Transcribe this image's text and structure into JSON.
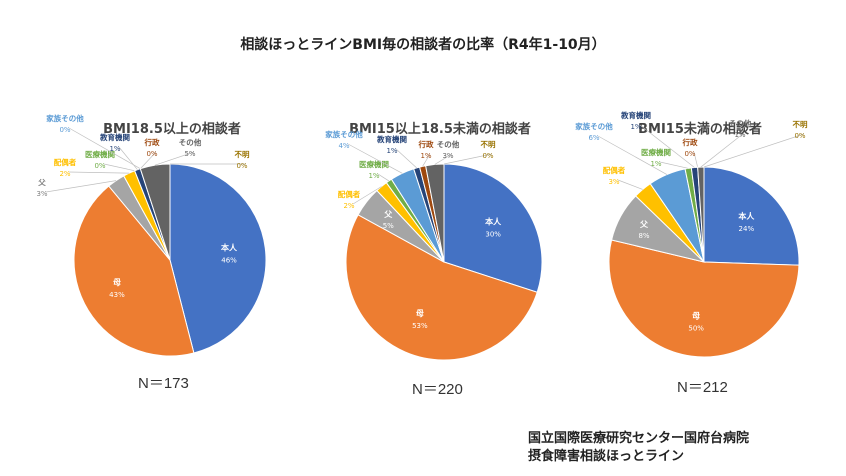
{
  "header": {
    "title": "相談ほっとラインBMI毎の相談者の比率（R4年1-10月）"
  },
  "chart_data": [
    {
      "type": "pie",
      "title": "BMI18.5以上の相談者",
      "n_label": "N＝173",
      "slices": [
        {
          "label": "本人",
          "value": 46,
          "value_label": "46%",
          "color": "#4472C4"
        },
        {
          "label": "母",
          "value": 43,
          "value_label": "43%",
          "color": "#ED7D31"
        },
        {
          "label": "父",
          "value": 3,
          "value_label": "3%",
          "color": "#A5A5A5"
        },
        {
          "label": "配偶者",
          "value": 2,
          "value_label": "2%",
          "color": "#FFC000"
        },
        {
          "label": "医療機関",
          "value": 0,
          "value_label": "0%",
          "color": "#70AD47"
        },
        {
          "label": "教育機関",
          "value": 1,
          "value_label": "1%",
          "color": "#264478"
        },
        {
          "label": "行政",
          "value": 0,
          "value_label": "0%",
          "color": "#9E480E"
        },
        {
          "label": "家族その他",
          "value": 0,
          "value_label": "0%",
          "color": "#5B9BD5"
        },
        {
          "label": "その他",
          "value": 5,
          "value_label": "5%",
          "color": "#636363"
        },
        {
          "label": "不明",
          "value": 0,
          "value_label": "0%",
          "color": "#997300"
        }
      ]
    },
    {
      "type": "pie",
      "title": "BMI15以上18.5未満の相談者",
      "n_label": "N＝220",
      "slices": [
        {
          "label": "本人",
          "value": 30,
          "value_label": "30%",
          "color": "#4472C4"
        },
        {
          "label": "母",
          "value": 53,
          "value_label": "53%",
          "color": "#ED7D31"
        },
        {
          "label": "父",
          "value": 5,
          "value_label": "5%",
          "color": "#A5A5A5"
        },
        {
          "label": "配偶者",
          "value": 2,
          "value_label": "2%",
          "color": "#FFC000"
        },
        {
          "label": "医療機関",
          "value": 1,
          "value_label": "1%",
          "color": "#70AD47"
        },
        {
          "label": "家族その他",
          "value": 4,
          "value_label": "4%",
          "color": "#5B9BD5"
        },
        {
          "label": "教育機関",
          "value": 1,
          "value_label": "1%",
          "color": "#264478"
        },
        {
          "label": "行政",
          "value": 1,
          "value_label": "1%",
          "color": "#9E480E"
        },
        {
          "label": "その他",
          "value": 3,
          "value_label": "3%",
          "color": "#636363"
        },
        {
          "label": "不明",
          "value": 0,
          "value_label": "0%",
          "color": "#997300"
        }
      ]
    },
    {
      "type": "pie",
      "title": "BMI15未満の相談者",
      "n_label": "N＝212",
      "slices": [
        {
          "label": "本人",
          "value": 24,
          "value_label": "24%",
          "color": "#4472C4"
        },
        {
          "label": "母",
          "value": 50,
          "value_label": "50%",
          "color": "#ED7D31"
        },
        {
          "label": "父",
          "value": 8,
          "value_label": "8%",
          "color": "#A5A5A5"
        },
        {
          "label": "配偶者",
          "value": 3,
          "value_label": "3%",
          "color": "#FFC000"
        },
        {
          "label": "家族その他",
          "value": 6,
          "value_label": "6%",
          "color": "#5B9BD5"
        },
        {
          "label": "医療機関",
          "value": 1,
          "value_label": "1%",
          "color": "#70AD47"
        },
        {
          "label": "教育機関",
          "value": 1,
          "value_label": "1%",
          "color": "#264478"
        },
        {
          "label": "行政",
          "value": 0,
          "value_label": "0%",
          "color": "#9E480E"
        },
        {
          "label": "その他",
          "value": 1,
          "value_label": "1%",
          "color": "#636363"
        },
        {
          "label": "不明",
          "value": 0,
          "value_label": "0%",
          "color": "#997300"
        }
      ]
    }
  ],
  "footer": {
    "org_line1": "国立国際医療研究センター国府台病院",
    "org_line2": "摂食障害相談ほっとライン"
  }
}
